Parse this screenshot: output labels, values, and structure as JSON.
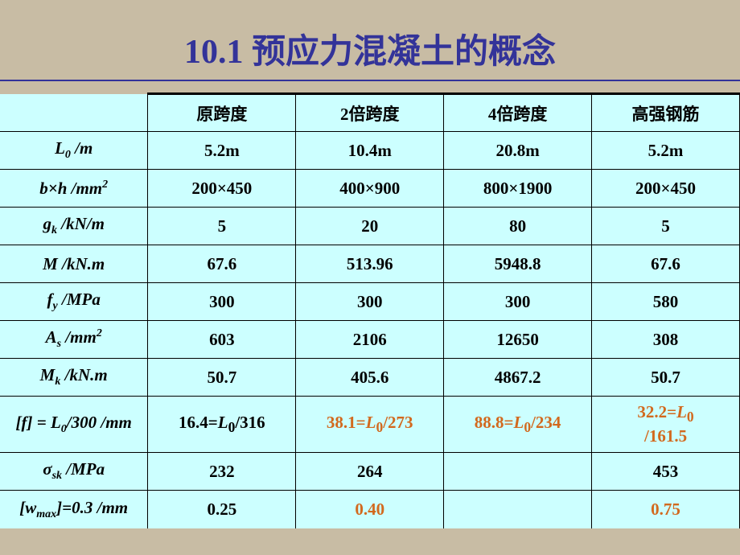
{
  "title": "10.1 预应力混凝土的概念",
  "title_color": "#333399",
  "table": {
    "bg_color": "#ccffff",
    "highlight_color": "#d2691e",
    "headers": [
      "",
      "原跨度",
      "2倍跨度",
      "4倍跨度",
      "高强钢筋"
    ],
    "row_labels_html": [
      "<span class='ital'>L</span><sub>0</sub> /m",
      "<span class='ital'>b</span>×<span class='ital'>h</span> /mm<sup>2</sup>",
      "<span class='ital'>g<sub>k</sub></span> /kN/m",
      "<span class='ital'>M</span> /kN.m",
      "<span class='ital'>f</span><sub>y</sub> /MPa",
      "<span class='ital'>A</span><sub>s</sub> /mm<sup>2</sup>",
      "<span class='ital'>M</span><sub>k</sub> /kN.m",
      "[<span class='ital'>f</span>] = <span class='ital'>L</span><sub>0</sub>/300 /mm",
      "<span class='ital'>σ</span><sub>sk</sub> /MPa",
      "[<span class='ital'>w</span><sub>max</sub>]=0.3 /mm"
    ],
    "rows": [
      {
        "cells": [
          {
            "t": "5.2m"
          },
          {
            "t": "10.4m"
          },
          {
            "t": "20.8m"
          },
          {
            "t": "5.2m"
          }
        ]
      },
      {
        "cells": [
          {
            "t": "200×450"
          },
          {
            "t": "400×900"
          },
          {
            "t": "800×1900"
          },
          {
            "t": "200×450"
          }
        ]
      },
      {
        "cells": [
          {
            "t": "5"
          },
          {
            "t": "20"
          },
          {
            "t": "80"
          },
          {
            "t": "5"
          }
        ]
      },
      {
        "cells": [
          {
            "t": "67.6"
          },
          {
            "t": "513.96"
          },
          {
            "t": "5948.8"
          },
          {
            "t": "67.6"
          }
        ]
      },
      {
        "cells": [
          {
            "t": "300"
          },
          {
            "t": "300"
          },
          {
            "t": "300"
          },
          {
            "t": "580"
          }
        ]
      },
      {
        "cells": [
          {
            "t": "603"
          },
          {
            "t": "2106"
          },
          {
            "t": "12650"
          },
          {
            "t": "308"
          }
        ]
      },
      {
        "cells": [
          {
            "t": "50.7"
          },
          {
            "t": "405.6"
          },
          {
            "t": "4867.2"
          },
          {
            "t": "50.7"
          }
        ]
      },
      {
        "cells": [
          {
            "html": "16.4=<span class='ital'>L</span><sub>0</sub>/316"
          },
          {
            "html": "38.1=<span class='ital'>L</span><sub>0</sub>/273",
            "hl": true
          },
          {
            "html": "88.8=<span class='ital'>L</span><sub>0</sub>/234",
            "hl": true
          },
          {
            "html": "32.2=<span class='ital'>L</span><sub>0</sub><br>/161.5",
            "hl": true
          }
        ],
        "tall": true
      },
      {
        "cells": [
          {
            "t": "232"
          },
          {
            "t": "264"
          },
          {
            "t": ""
          },
          {
            "t": "453"
          }
        ]
      },
      {
        "cells": [
          {
            "t": "0.25"
          },
          {
            "t": "0.40",
            "hl": true
          },
          {
            "t": ""
          },
          {
            "t": "0.75",
            "hl": true
          }
        ],
        "last": true
      }
    ]
  }
}
